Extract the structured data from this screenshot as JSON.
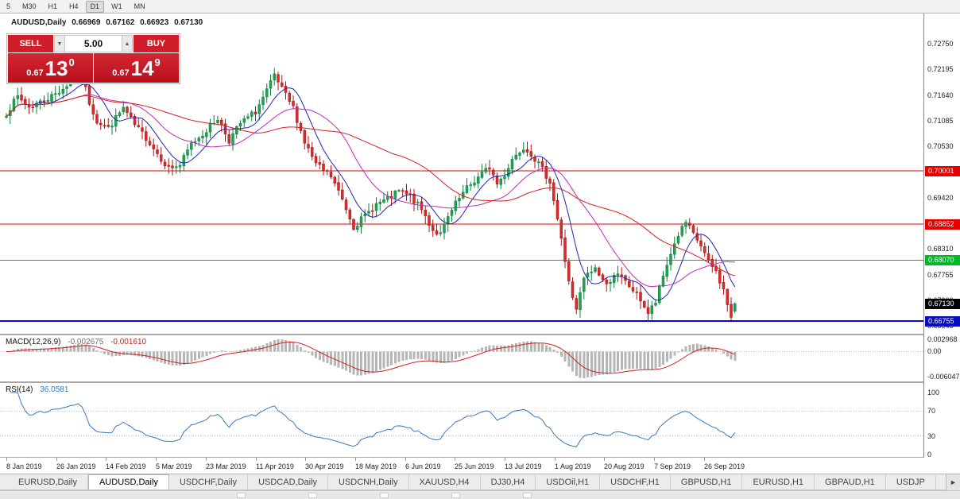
{
  "toolbar": {
    "timeframes": [
      "5",
      "M30",
      "H1",
      "H4",
      "D1",
      "W1",
      "MN"
    ],
    "active": "D1"
  },
  "icons": {
    "volume_down": "▼",
    "volume_up": "▲",
    "tab_scroll_right": "►"
  },
  "chart": {
    "title": "AUDUSD,Daily",
    "ohlc": {
      "open": "0.66969",
      "high": "0.67162",
      "low": "0.66923",
      "close": "0.67130"
    },
    "trade_panel": {
      "sell_label": "SELL",
      "buy_label": "BUY",
      "volume": "5.00",
      "sell_price": {
        "small": "0.67",
        "big": "13",
        "sup": "0"
      },
      "buy_price": {
        "small": "0.67",
        "big": "14",
        "sup": "9"
      }
    },
    "price_axis": [
      "0.72750",
      "0.72195",
      "0.71640",
      "0.71085",
      "0.70530",
      "0.69975",
      "0.69420",
      "0.68865",
      "0.68310",
      "0.67755",
      "0.67200",
      "0.66645"
    ],
    "date_axis": [
      "8 Jan 2019",
      "26 Jan 2019",
      "14 Feb 2019",
      "5 Mar 2019",
      "23 Mar 2019",
      "11 Apr 2019",
      "30 Apr 2019",
      "18 May 2019",
      "6 Jun 2019",
      "25 Jun 2019",
      "13 Jul 2019",
      "1 Aug 2019",
      "20 Aug 2019",
      "7 Sep 2019",
      "26 Sep 2019"
    ]
  },
  "indicators": {
    "macd": {
      "name": "MACD(12,26,9)",
      "value_main": "-0.002675",
      "value_signal": "-0.001610"
    },
    "rsi": {
      "name": "RSI(14)",
      "value": "36.0581"
    }
  },
  "tabs": {
    "items": [
      {
        "label": "EURUSD,Daily"
      },
      {
        "label": "AUDUSD,Daily",
        "active": true
      },
      {
        "label": "USDCHF,Daily"
      },
      {
        "label": "USDCAD,Daily"
      },
      {
        "label": "USDCNH,Daily"
      },
      {
        "label": "XAUUSD,H4"
      },
      {
        "label": "DJ30,H4"
      },
      {
        "label": "USDOil,H1"
      },
      {
        "label": "USDCHF,H1"
      },
      {
        "label": "GBPUSD,H1"
      },
      {
        "label": "EURUSD,H1"
      },
      {
        "label": "GBPAUD,H1"
      },
      {
        "label": "USDJP"
      }
    ]
  },
  "chart_data": [
    {
      "type": "candlestick",
      "title": "AUDUSD,Daily",
      "bars": 194,
      "bars_per_label": 13.2,
      "ylim": [
        0.66481,
        0.73401
      ],
      "x_labels": [
        "8 Jan 2019",
        "26 Jan 2019",
        "14 Feb 2019",
        "5 Mar 2019",
        "23 Mar 2019",
        "11 Apr 2019",
        "30 Apr 2019",
        "18 May 2019",
        "6 Jun 2019",
        "25 Jun 2019",
        "13 Jul 2019",
        "1 Aug 2019",
        "20 Aug 2019",
        "7 Sep 2019",
        "26 Sep 2019"
      ],
      "ohlc_last": {
        "open": 0.66969,
        "high": 0.67162,
        "low": 0.66923,
        "close": 0.6713
      },
      "price_anchors": [
        [
          0,
          0.7125
        ],
        [
          3,
          0.716
        ],
        [
          6,
          0.7138
        ],
        [
          10,
          0.7152
        ],
        [
          14,
          0.7172
        ],
        [
          18,
          0.7198
        ],
        [
          20,
          0.7205
        ],
        [
          22,
          0.7148
        ],
        [
          24,
          0.7108
        ],
        [
          27,
          0.7092
        ],
        [
          31,
          0.7136
        ],
        [
          34,
          0.7098
        ],
        [
          37,
          0.7072
        ],
        [
          40,
          0.7038
        ],
        [
          43,
          0.7006
        ],
        [
          46,
          0.7012
        ],
        [
          49,
          0.7058
        ],
        [
          53,
          0.7088
        ],
        [
          56,
          0.7114
        ],
        [
          59,
          0.7066
        ],
        [
          62,
          0.7102
        ],
        [
          66,
          0.7128
        ],
        [
          69,
          0.7172
        ],
        [
          71,
          0.7205
        ],
        [
          73,
          0.7176
        ],
        [
          76,
          0.7136
        ],
        [
          79,
          0.7062
        ],
        [
          82,
          0.7014
        ],
        [
          86,
          0.6988
        ],
        [
          89,
          0.6938
        ],
        [
          92,
          0.688
        ],
        [
          95,
          0.6902
        ],
        [
          98,
          0.6928
        ],
        [
          101,
          0.6938
        ],
        [
          104,
          0.6956
        ],
        [
          107,
          0.6944
        ],
        [
          110,
          0.6916
        ],
        [
          113,
          0.6872
        ],
        [
          115,
          0.6862
        ],
        [
          117,
          0.6898
        ],
        [
          119,
          0.6928
        ],
        [
          122,
          0.6962
        ],
        [
          125,
          0.6986
        ],
        [
          128,
          0.7008
        ],
        [
          130,
          0.6972
        ],
        [
          132,
          0.6992
        ],
        [
          134,
          0.7026
        ],
        [
          137,
          0.7052
        ],
        [
          139,
          0.7038
        ],
        [
          142,
          0.7002
        ],
        [
          144,
          0.6978
        ],
        [
          146,
          0.6896
        ],
        [
          148,
          0.6806
        ],
        [
          150,
          0.6722
        ],
        [
          151,
          0.6698
        ],
        [
          153,
          0.6768
        ],
        [
          156,
          0.679
        ],
        [
          159,
          0.6752
        ],
        [
          161,
          0.6778
        ],
        [
          163,
          0.6768
        ],
        [
          166,
          0.6742
        ],
        [
          168,
          0.6722
        ],
        [
          170,
          0.6692
        ],
        [
          172,
          0.6716
        ],
        [
          174,
          0.6772
        ],
        [
          176,
          0.6822
        ],
        [
          178,
          0.6862
        ],
        [
          180,
          0.6888
        ],
        [
          182,
          0.6862
        ],
        [
          184,
          0.6838
        ],
        [
          186,
          0.6802
        ],
        [
          188,
          0.6782
        ],
        [
          190,
          0.6742
        ],
        [
          191,
          0.6712
        ],
        [
          192,
          0.6682
        ],
        [
          193,
          0.6713
        ]
      ],
      "up_color": "#1fa355",
      "up_border": "#0c7d3c",
      "down_color": "#d92b2b",
      "down_border": "#a81414",
      "moving_averages": [
        {
          "name": "MA fast",
          "period": 8,
          "color": "#2424b4"
        },
        {
          "name": "MA medium",
          "period": 21,
          "color": "#c428c4"
        },
        {
          "name": "MA slow",
          "period": 45,
          "color": "#d42020"
        }
      ],
      "levels": [
        {
          "price": 0.70001,
          "label": "0.70001",
          "color": "#e60000",
          "width": 1
        },
        {
          "price": 0.68852,
          "label": "0.68852",
          "color": "#e60000",
          "width": 1
        },
        {
          "price": 0.6807,
          "label": "0.68070",
          "color": "#00b928",
          "width": 1
        },
        {
          "price": 0.66755,
          "label": "0.66755",
          "color": "#0a0ac0",
          "width": 2
        }
      ],
      "last_price": {
        "price": 0.6713,
        "label": "0.67130",
        "color": "#000000"
      }
    },
    {
      "type": "macd",
      "title": "MACD(12,26,9)",
      "params": [
        12,
        26,
        9
      ],
      "current": [
        -0.002675,
        -0.00161
      ],
      "ylim": [
        -0.0065,
        0.0032
      ],
      "axis_labels": [
        0.002968,
        0,
        -0.006047
      ],
      "axis_label_texts": [
        "0.002968",
        "0.00",
        "-0.006047"
      ],
      "histogram_color": "#b6b6b6",
      "signal_color": "#d02020"
    },
    {
      "type": "rsi",
      "title": "RSI(14)",
      "period": 14,
      "current": 36.0581,
      "ylim": [
        0,
        100
      ],
      "levels": [
        70,
        30
      ],
      "axis_labels": [
        100,
        70,
        30,
        0
      ],
      "axis_label_texts": [
        "100",
        "70",
        "30",
        "0"
      ],
      "color": "#3779bd"
    }
  ]
}
